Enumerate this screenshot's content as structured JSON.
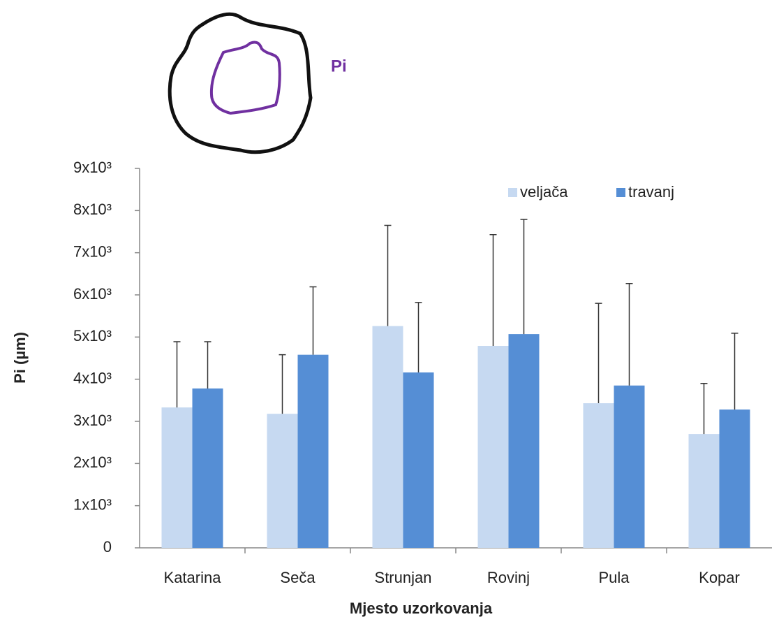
{
  "chart_data": {
    "type": "bar",
    "annotation": "Pi",
    "x_label": "Mjesto uzorkovanja",
    "y_label": "Pi (µm)",
    "categories": [
      "Katarina",
      "Seča",
      "Strunjan",
      "Rovinj",
      "Pula",
      "Kopar"
    ],
    "series": [
      {
        "name": "veljača",
        "color": "#c6d9f1",
        "values": [
          3330,
          3180,
          5260,
          4790,
          3430,
          2700
        ],
        "errors": [
          1560,
          1400,
          2390,
          2640,
          2370,
          1200
        ]
      },
      {
        "name": "travanj",
        "color": "#558ed5",
        "values": [
          3780,
          4580,
          4160,
          5070,
          3850,
          3280
        ],
        "errors": [
          1110,
          1610,
          1660,
          2720,
          2420,
          1810
        ]
      }
    ],
    "ylim": [
      0,
      9000
    ],
    "yticks": [
      0,
      {
        "value": 1000,
        "label": "1x10³"
      },
      {
        "value": 2000,
        "label": "2x10³"
      },
      {
        "value": 3000,
        "label": "3x10³"
      },
      {
        "value": 4000,
        "label": "4x10³"
      },
      {
        "value": 5000,
        "label": "5x10³"
      },
      {
        "value": 6000,
        "label": "6x10³"
      },
      {
        "value": 7000,
        "label": "7x10³"
      },
      {
        "value": 8000,
        "label": "8x10³"
      },
      {
        "value": 9000,
        "label": "9x10³"
      }
    ],
    "grid": false,
    "legend": "top-right"
  }
}
